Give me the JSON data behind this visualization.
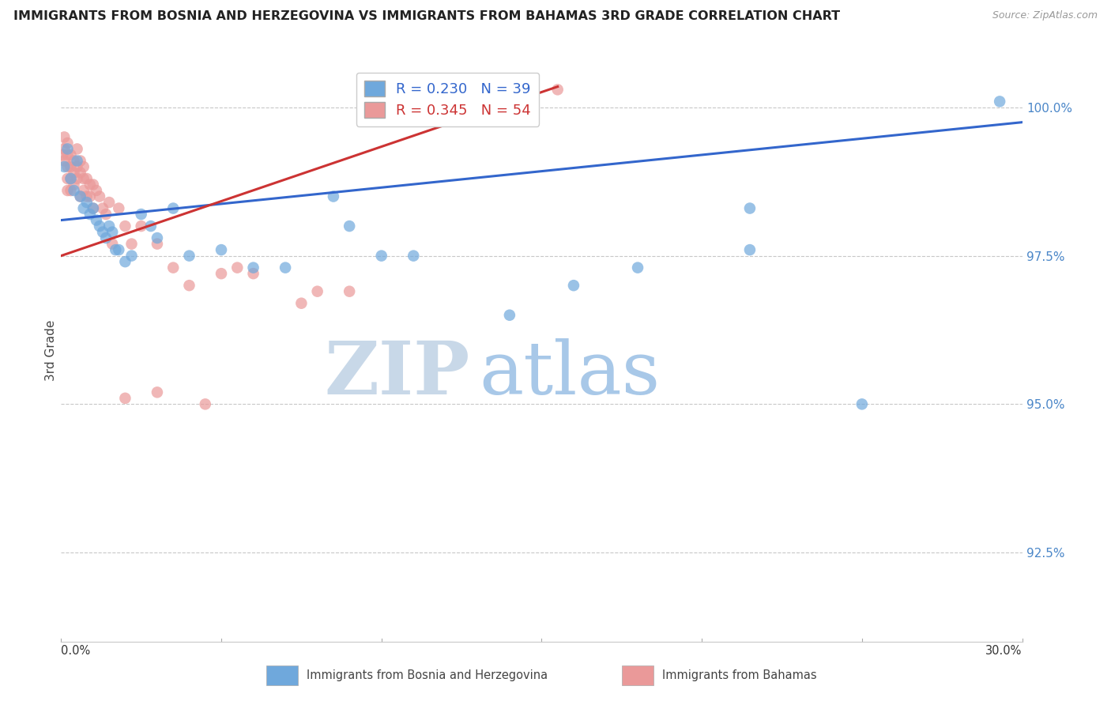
{
  "title": "IMMIGRANTS FROM BOSNIA AND HERZEGOVINA VS IMMIGRANTS FROM BAHAMAS 3RD GRADE CORRELATION CHART",
  "source": "Source: ZipAtlas.com",
  "ylabel": "3rd Grade",
  "y_ticks": [
    92.5,
    95.0,
    97.5,
    100.0
  ],
  "x_min": 0.0,
  "x_max": 0.3,
  "y_min": 91.0,
  "y_max": 100.8,
  "blue_R": 0.23,
  "blue_N": 39,
  "pink_R": 0.345,
  "pink_N": 54,
  "legend_label_blue": "Immigrants from Bosnia and Herzegovina",
  "legend_label_pink": "Immigrants from Bahamas",
  "blue_color": "#6fa8dc",
  "pink_color": "#ea9999",
  "blue_line_color": "#3366cc",
  "pink_line_color": "#cc3333",
  "watermark_zip": "ZIP",
  "watermark_atlas": "atlas",
  "watermark_zip_color": "#c8d8e8",
  "watermark_atlas_color": "#a8c8e8",
  "blue_line_x0": 0.0,
  "blue_line_y0": 98.1,
  "blue_line_x1": 0.3,
  "blue_line_y1": 99.75,
  "pink_line_x0": 0.0,
  "pink_line_y0": 97.5,
  "pink_line_x1": 0.155,
  "pink_line_y1": 100.35,
  "blue_x": [
    0.001,
    0.002,
    0.003,
    0.004,
    0.005,
    0.006,
    0.007,
    0.008,
    0.009,
    0.01,
    0.011,
    0.012,
    0.013,
    0.014,
    0.015,
    0.016,
    0.017,
    0.018,
    0.02,
    0.022,
    0.025,
    0.028,
    0.03,
    0.035,
    0.04,
    0.05,
    0.06,
    0.07,
    0.085,
    0.09,
    0.1,
    0.11,
    0.14,
    0.16,
    0.18,
    0.215,
    0.215,
    0.25,
    0.293
  ],
  "blue_y": [
    99.0,
    99.3,
    98.8,
    98.6,
    99.1,
    98.5,
    98.3,
    98.4,
    98.2,
    98.3,
    98.1,
    98.0,
    97.9,
    97.8,
    98.0,
    97.9,
    97.6,
    97.6,
    97.4,
    97.5,
    98.2,
    98.0,
    97.8,
    98.3,
    97.5,
    97.6,
    97.3,
    97.3,
    98.5,
    98.0,
    97.5,
    97.5,
    96.5,
    97.0,
    97.3,
    98.3,
    97.6,
    95.0,
    100.1
  ],
  "pink_x": [
    0.0005,
    0.001,
    0.001,
    0.001,
    0.002,
    0.002,
    0.002,
    0.002,
    0.002,
    0.003,
    0.003,
    0.003,
    0.003,
    0.004,
    0.004,
    0.004,
    0.005,
    0.005,
    0.005,
    0.006,
    0.006,
    0.006,
    0.007,
    0.007,
    0.007,
    0.008,
    0.008,
    0.009,
    0.009,
    0.01,
    0.01,
    0.011,
    0.012,
    0.013,
    0.014,
    0.015,
    0.016,
    0.018,
    0.02,
    0.022,
    0.025,
    0.03,
    0.035,
    0.04,
    0.05,
    0.055,
    0.06,
    0.075,
    0.08,
    0.09,
    0.03,
    0.02,
    0.045,
    0.155
  ],
  "pink_y": [
    99.2,
    99.5,
    99.3,
    99.1,
    99.4,
    99.2,
    99.0,
    98.8,
    98.6,
    99.2,
    99.0,
    98.8,
    98.6,
    99.1,
    98.9,
    98.7,
    99.3,
    99.0,
    98.8,
    99.1,
    98.9,
    98.5,
    99.0,
    98.8,
    98.6,
    98.8,
    98.5,
    98.7,
    98.5,
    98.7,
    98.3,
    98.6,
    98.5,
    98.3,
    98.2,
    98.4,
    97.7,
    98.3,
    98.0,
    97.7,
    98.0,
    97.7,
    97.3,
    97.0,
    97.2,
    97.3,
    97.2,
    96.7,
    96.9,
    96.9,
    95.2,
    95.1,
    95.0,
    100.3
  ]
}
